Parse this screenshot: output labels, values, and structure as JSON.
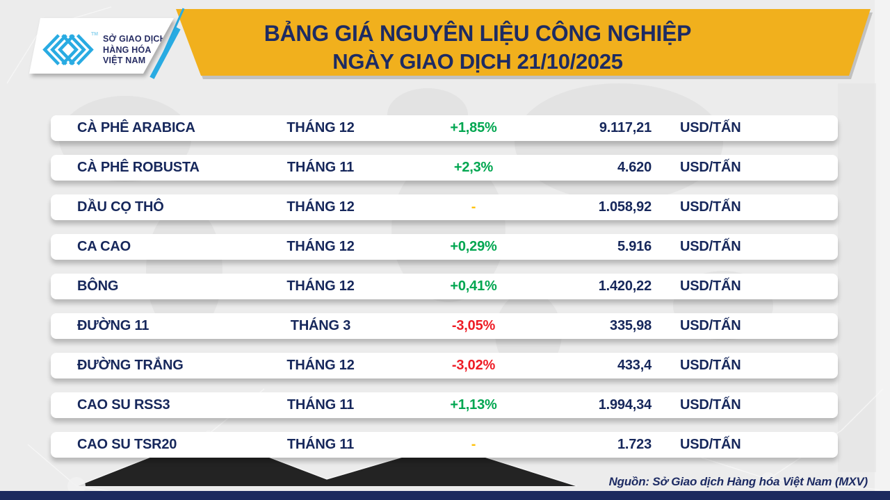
{
  "header": {
    "logo": {
      "tm": "TM",
      "org_lines": [
        "SỞ GIAO DỊCH",
        "HÀNG HÓA",
        "VIỆT NAM"
      ]
    },
    "title_line1": "BẢNG GIÁ NGUYÊN LIỆU CÔNG NGHIỆP",
    "title_line2": "NGÀY GIAO DỊCH 21/10/2025"
  },
  "chart_data": {
    "type": "table",
    "title": "BẢNG GIÁ NGUYÊN LIỆU CÔNG NGHIỆP",
    "subtitle": "NGÀY GIAO DỊCH 21/10/2025",
    "columns": [
      "commodity",
      "contract_month",
      "change_percent",
      "price",
      "unit"
    ],
    "rows": [
      {
        "commodity": "CÀ PHÊ ARABICA",
        "month": "THÁNG 12",
        "change": "+1,85%",
        "direction": "up",
        "price": "9.117,21",
        "unit": "USD/TẤN"
      },
      {
        "commodity": "CÀ PHÊ ROBUSTA",
        "month": "THÁNG 11",
        "change": "+2,3%",
        "direction": "up",
        "price": "4.620",
        "unit": "USD/TẤN"
      },
      {
        "commodity": "DẦU CỌ THÔ",
        "month": "THÁNG 12",
        "change": "-",
        "direction": "flat",
        "price": "1.058,92",
        "unit": "USD/TẤN"
      },
      {
        "commodity": "CA CAO",
        "month": "THÁNG 12",
        "change": "+0,29%",
        "direction": "up",
        "price": "5.916",
        "unit": "USD/TẤN"
      },
      {
        "commodity": "BÔNG",
        "month": "THÁNG 12",
        "change": "+0,41%",
        "direction": "up",
        "price": "1.420,22",
        "unit": "USD/TẤN"
      },
      {
        "commodity": "ĐƯỜNG 11",
        "month": "THÁNG 3",
        "change": "-3,05%",
        "direction": "down",
        "price": "335,98",
        "unit": "USD/TẤN"
      },
      {
        "commodity": "ĐƯỜNG TRẮNG",
        "month": "THÁNG 12",
        "change": "-3,02%",
        "direction": "down",
        "price": "433,4",
        "unit": "USD/TẤN"
      },
      {
        "commodity": "CAO SU RSS3",
        "month": "THÁNG 11",
        "change": "+1,13%",
        "direction": "up",
        "price": "1.994,34",
        "unit": "USD/TẤN"
      },
      {
        "commodity": "CAO SU TSR20",
        "month": "THÁNG 11",
        "change": "-",
        "direction": "flat",
        "price": "1.723",
        "unit": "USD/TẤN"
      }
    ]
  },
  "footer": {
    "source": "Nguồn: Sở Giao dịch Hàng hóa Việt Nam (MXV)"
  },
  "colors": {
    "banner_yellow": "#f1b01d",
    "navy": "#1c2a5e",
    "cyan": "#29abe2",
    "up_green": "#00a650",
    "down_red": "#ee1c25",
    "neutral_yellow": "#ffc20e",
    "background_gray": "#ececec"
  }
}
